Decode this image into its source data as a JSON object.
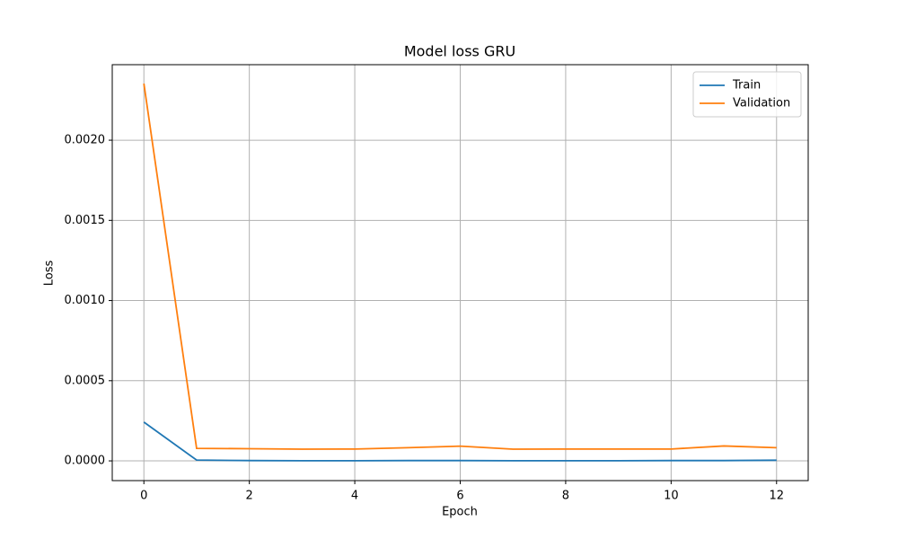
{
  "chart_data": {
    "type": "line",
    "title": "Model loss GRU",
    "x_label": "Epoch",
    "y_label": "Loss",
    "x": [
      0,
      1,
      2,
      3,
      4,
      5,
      6,
      7,
      8,
      9,
      10,
      11,
      12
    ],
    "series": [
      {
        "name": "Train",
        "color": "#1f77b4",
        "values": [
          0.000242,
          5e-06,
          2e-06,
          1e-06,
          1e-06,
          2e-06,
          2e-06,
          1e-06,
          1e-06,
          1e-06,
          2e-06,
          2e-06,
          4e-06
        ]
      },
      {
        "name": "Validation",
        "color": "#ff7f0e",
        "values": [
          0.002353,
          7.8e-05,
          7.6e-05,
          7.3e-05,
          7.4e-05,
          8.2e-05,
          9.2e-05,
          7.3e-05,
          7.4e-05,
          7.4e-05,
          7.4e-05,
          9.3e-05,
          8.2e-05
        ]
      }
    ],
    "xlim": [
      -0.6,
      12.6
    ],
    "xticks": [
      0,
      2,
      4,
      6,
      8,
      10,
      12
    ],
    "ylim": [
      -0.000123,
      0.002471
    ],
    "yticks": [
      {
        "value": 0,
        "label": "0.0000"
      },
      {
        "value": 0.0005,
        "label": "0.0005"
      },
      {
        "value": 0.001,
        "label": "0.0010"
      },
      {
        "value": 0.0015,
        "label": "0.0015"
      },
      {
        "value": 0.002,
        "label": "0.0020"
      }
    ],
    "grid": true,
    "legend": "upper right"
  }
}
